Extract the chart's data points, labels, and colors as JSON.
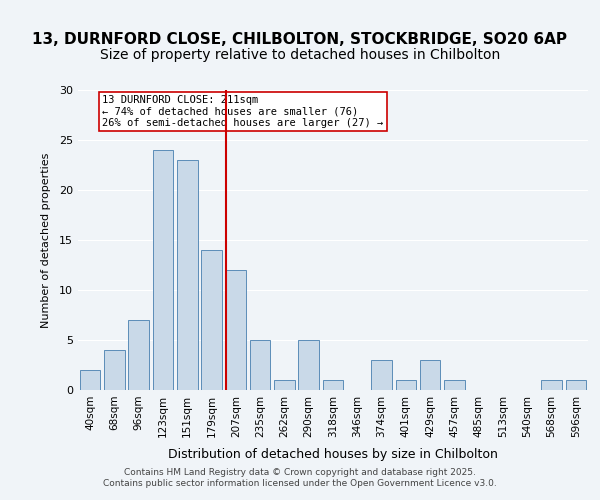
{
  "title_line1": "13, DURNFORD CLOSE, CHILBOLTON, STOCKBRIDGE, SO20 6AP",
  "title_line2": "Size of property relative to detached houses in Chilbolton",
  "xlabel": "Distribution of detached houses by size in Chilbolton",
  "ylabel": "Number of detached properties",
  "bar_labels": [
    "40sqm",
    "68sqm",
    "96sqm",
    "123sqm",
    "151sqm",
    "179sqm",
    "207sqm",
    "235sqm",
    "262sqm",
    "290sqm",
    "318sqm",
    "346sqm",
    "374sqm",
    "401sqm",
    "429sqm",
    "457sqm",
    "485sqm",
    "513sqm",
    "540sqm",
    "568sqm",
    "596sqm"
  ],
  "bar_values": [
    2,
    4,
    7,
    24,
    23,
    14,
    12,
    5,
    1,
    5,
    1,
    0,
    3,
    1,
    3,
    1,
    0,
    0,
    0,
    1,
    1
  ],
  "bar_color": "#c9d9e8",
  "bar_edge_color": "#5b8db8",
  "property_line_x": 6,
  "property_sqm": 211,
  "annotation_text": "13 DURNFORD CLOSE: 211sqm\n← 74% of detached houses are smaller (76)\n26% of semi-detached houses are larger (27) →",
  "annotation_box_color": "#ffffff",
  "annotation_box_edge_color": "#cc0000",
  "vline_color": "#cc0000",
  "footer_text": "Contains HM Land Registry data © Crown copyright and database right 2025.\nContains public sector information licensed under the Open Government Licence v3.0.",
  "ylim": [
    0,
    30
  ],
  "yticks": [
    0,
    5,
    10,
    15,
    20,
    25,
    30
  ],
  "background_color": "#f0f4f8",
  "plot_bg_color": "#f0f4f8",
  "grid_color": "#ffffff",
  "title_fontsize": 11,
  "subtitle_fontsize": 10
}
